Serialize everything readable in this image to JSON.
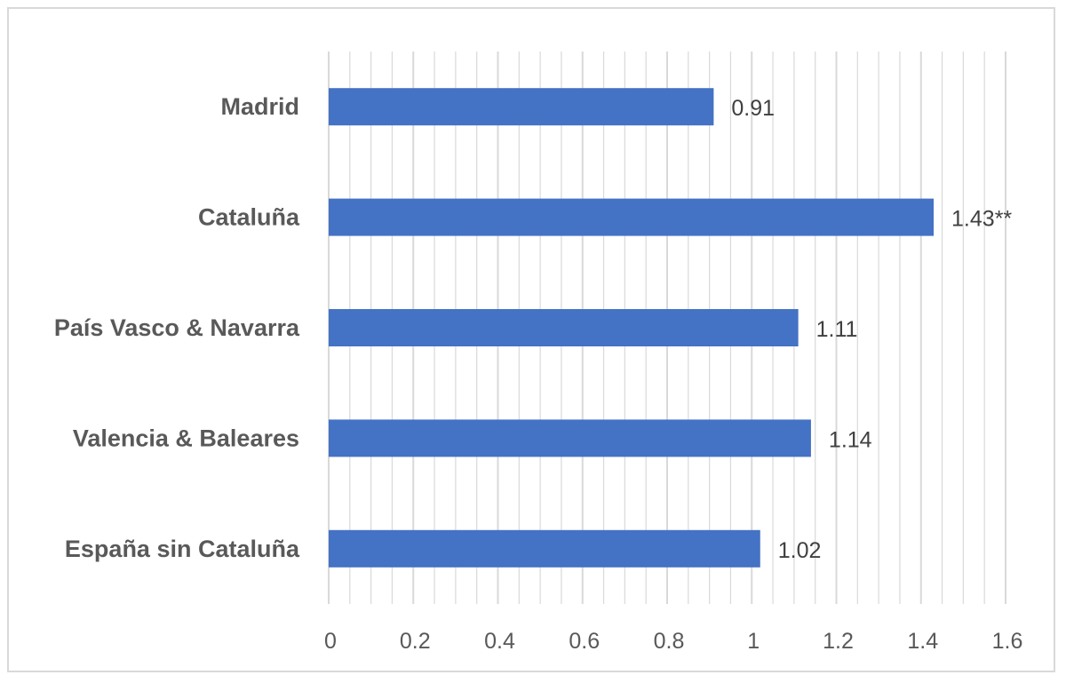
{
  "chart_data": {
    "type": "bar",
    "orientation": "horizontal",
    "categories": [
      "Madrid",
      "Cataluña",
      "País Vasco & Navarra",
      "Valencia & Baleares",
      "España sin Cataluña"
    ],
    "values": [
      0.91,
      1.43,
      1.11,
      1.14,
      1.02
    ],
    "data_labels": [
      "0.91",
      "1.43**",
      "1.11",
      "1.14",
      "1.02"
    ],
    "xlim": [
      0,
      1.6
    ],
    "x_ticks": [
      "0",
      "0.2",
      "0.4",
      "0.6",
      "0.8",
      "1",
      "1.2",
      "1.4",
      "1.6"
    ],
    "grid": "vertical major and minor",
    "legend": "none",
    "title": "",
    "xlabel": "",
    "ylabel": ""
  },
  "colors": {
    "bar": "#4472c4",
    "grid": "#d9d9d9",
    "text": "#595959"
  }
}
